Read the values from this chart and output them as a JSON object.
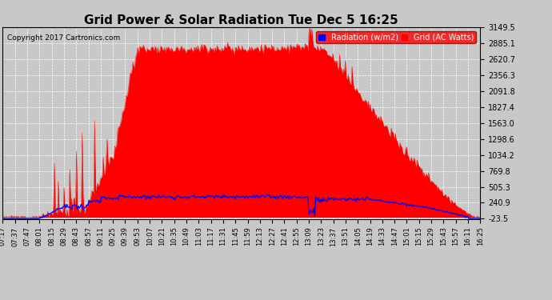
{
  "title": "Grid Power & Solar Radiation Tue Dec 5 16:25",
  "copyright": "Copyright 2017 Cartronics.com",
  "legend_labels": [
    "Radiation (w/m2)",
    "Grid (AC Watts)"
  ],
  "legend_colors_patch": [
    "blue",
    "red"
  ],
  "yticks": [
    -23.5,
    240.9,
    505.3,
    769.8,
    1034.2,
    1298.6,
    1563.0,
    1827.4,
    2091.8,
    2356.3,
    2620.7,
    2885.1,
    3149.5
  ],
  "ymin": -23.5,
  "ymax": 3149.5,
  "bg_color": "#c8c8c8",
  "plot_bg": "#c8c8c8",
  "grid_color": "white",
  "fill_color": "red",
  "line_color": "blue",
  "title_fontsize": 11,
  "n_points": 500,
  "time_labels": [
    "07:17",
    "07:37",
    "07:47",
    "08:01",
    "08:15",
    "08:29",
    "08:43",
    "08:57",
    "09:11",
    "09:25",
    "09:39",
    "09:53",
    "10:07",
    "10:21",
    "10:35",
    "10:49",
    "11:03",
    "11:17",
    "11:31",
    "11:45",
    "11:59",
    "12:13",
    "12:27",
    "12:41",
    "12:55",
    "13:09",
    "13:23",
    "13:37",
    "13:51",
    "14:05",
    "14:19",
    "14:33",
    "14:47",
    "15:01",
    "15:15",
    "15:29",
    "15:43",
    "15:57",
    "16:11",
    "16:25"
  ]
}
